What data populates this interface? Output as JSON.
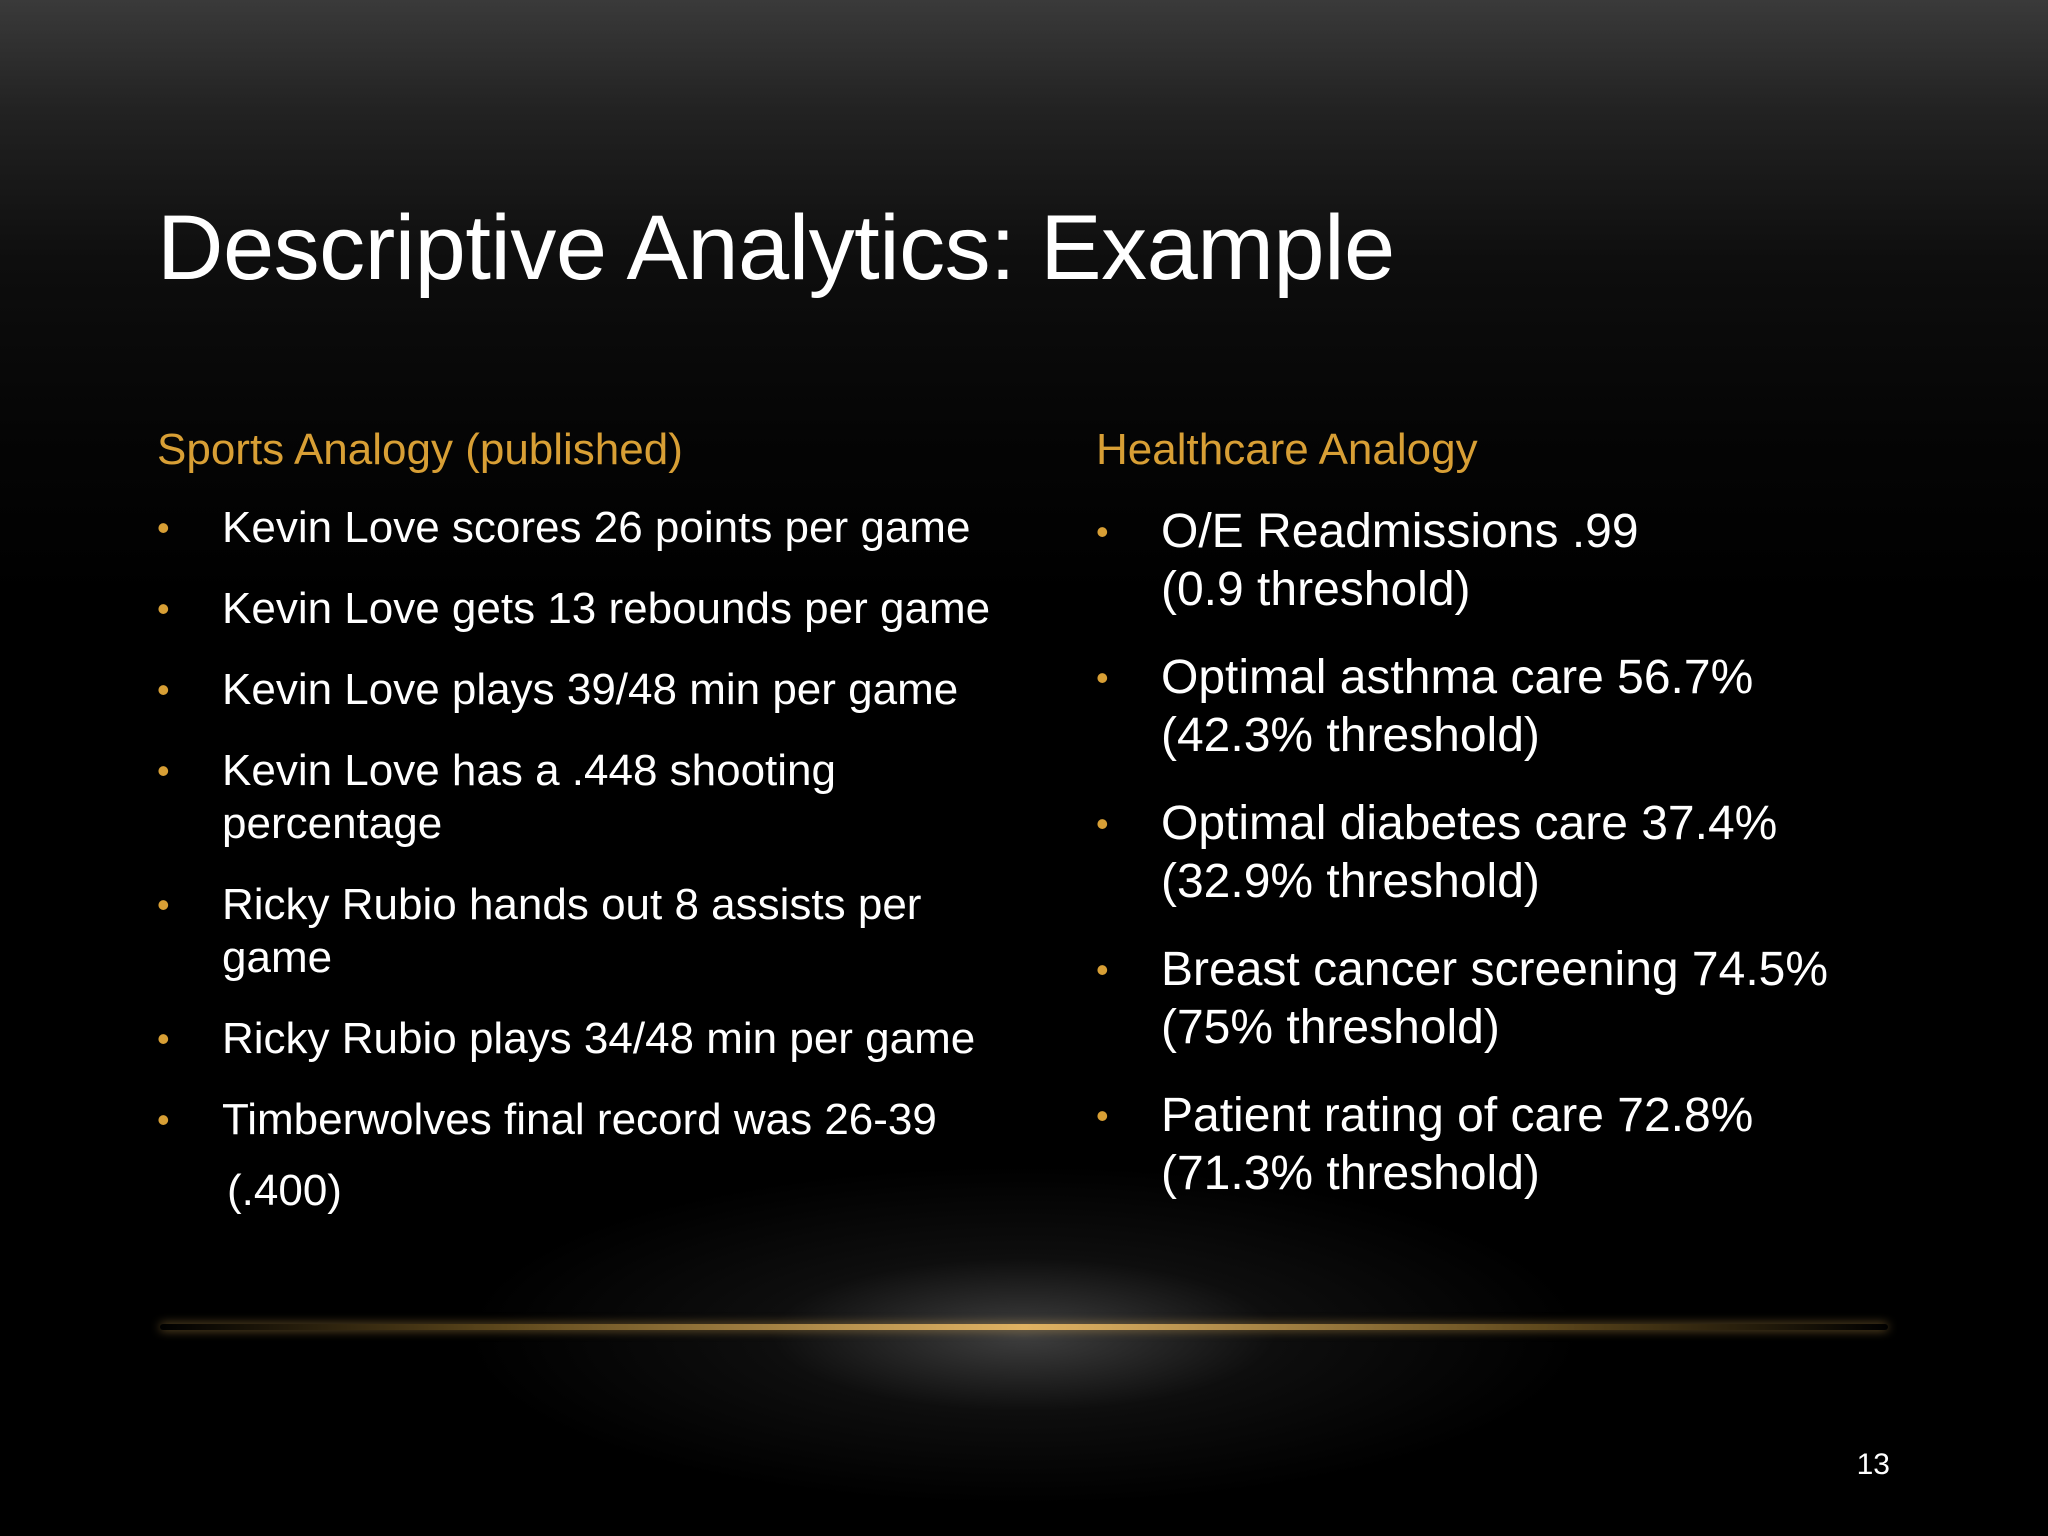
{
  "slide": {
    "title": "Descriptive Analytics: Example",
    "page_number": "13",
    "accent_color": "#d89f35",
    "left": {
      "heading": "Sports Analogy (published)",
      "items": [
        [
          "Kevin Love scores 26 points per game"
        ],
        [
          "Kevin Love gets 13 rebounds per game"
        ],
        [
          "Kevin Love plays 39/48 min per game"
        ],
        [
          "Kevin Love has a .448 shooting",
          "percentage"
        ],
        [
          "Ricky Rubio hands out 8 assists per",
          "game"
        ],
        [
          "Ricky Rubio plays 34/48 min per game"
        ],
        [
          "Timberwolves final record was 26-39"
        ]
      ],
      "tail": "(.400)"
    },
    "right": {
      "heading": "Healthcare Analogy",
      "items": [
        [
          "O/E Readmissions .99",
          "(0.9 threshold)"
        ],
        [
          "Optimal asthma care 56.7%",
          "(42.3% threshold)"
        ],
        [
          "Optimal diabetes care 37.4%",
          "(32.9% threshold)"
        ],
        [
          "Breast cancer screening 74.5%",
          "(75% threshold)"
        ],
        [
          "Patient rating of care 72.8%",
          "(71.3% threshold)"
        ]
      ]
    }
  }
}
